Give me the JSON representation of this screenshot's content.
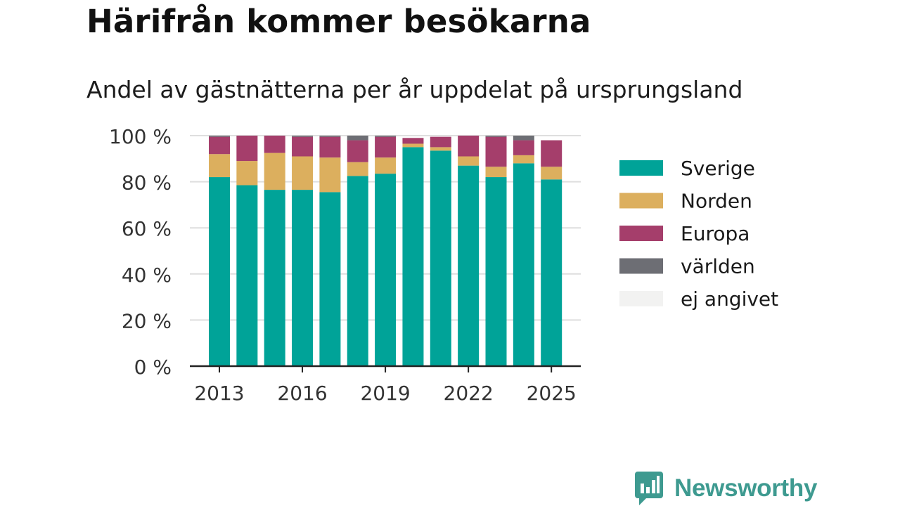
{
  "header": {
    "title": "Härifrån kommer besökarna",
    "subtitle": "Andel av gästnätterna per år uppdelat på ursprungsland"
  },
  "brand": {
    "name": "Newsworthy",
    "icon": "newsworthy-logo-icon",
    "color": "#3e9a90"
  },
  "chart_data": {
    "type": "bar",
    "stacked": true,
    "title": "Härifrån kommer besökarna",
    "subtitle": "Andel av gästnätterna per år uppdelat på ursprungsland",
    "xlabel": "",
    "ylabel": "",
    "ylim": [
      0,
      100
    ],
    "y_unit": " %",
    "y_ticks": [
      0,
      20,
      40,
      60,
      80,
      100
    ],
    "x_ticks": [
      "2013",
      "2016",
      "2019",
      "2022",
      "2025"
    ],
    "grid": "horizontal",
    "legend_position": "right",
    "categories": [
      "2013",
      "2014",
      "2015",
      "2016",
      "2017",
      "2018",
      "2019",
      "2020",
      "2021",
      "2022",
      "2023",
      "2024",
      "2025"
    ],
    "series": [
      {
        "name": "Sverige",
        "color": "#00a398",
        "values": [
          82,
          78.5,
          76.5,
          76.5,
          75.5,
          82.5,
          83.5,
          95,
          93.5,
          87,
          82,
          88,
          81
        ]
      },
      {
        "name": "Norden",
        "color": "#dcaf5e",
        "values": [
          10,
          10.5,
          16,
          14.5,
          15,
          6,
          7,
          1.5,
          1.5,
          4,
          4.5,
          3.5,
          5.5
        ]
      },
      {
        "name": "Europa",
        "color": "#a53e6b",
        "values": [
          7.5,
          11,
          7.5,
          8.5,
          9,
          9.5,
          9,
          2.5,
          4.5,
          9,
          13,
          6.5,
          11.5
        ]
      },
      {
        "name": "världen",
        "color": "#6d6e74",
        "values": [
          0.5,
          0,
          0,
          0.5,
          0.5,
          2,
          0.5,
          0,
          0,
          0,
          0.5,
          2,
          0
        ]
      },
      {
        "name": "ej angivet",
        "color": "#f2f2f1",
        "values": [
          0,
          0,
          0,
          0,
          0,
          0,
          0,
          0,
          0,
          0,
          0,
          0,
          0
        ]
      }
    ]
  }
}
